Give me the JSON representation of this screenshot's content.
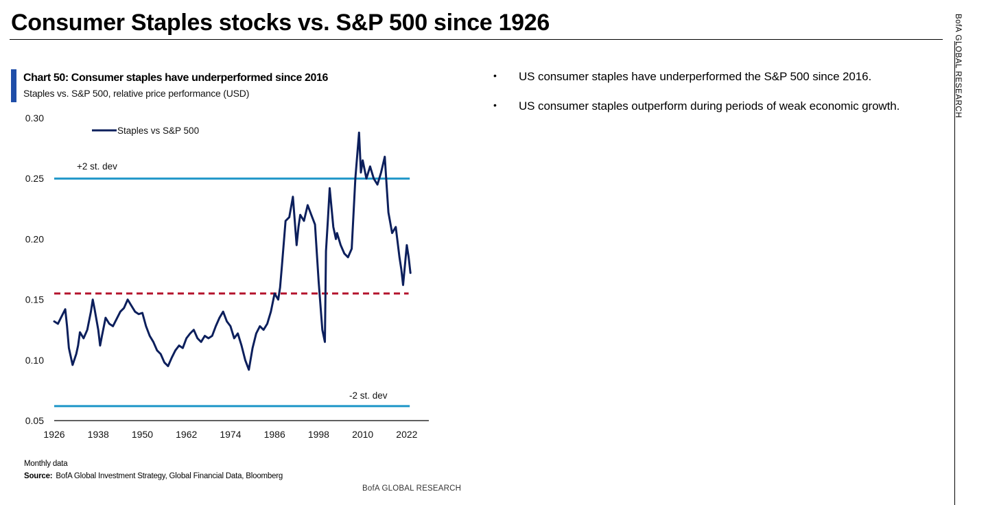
{
  "page": {
    "title": "Consumer Staples stocks vs. S&P 500 since 1926",
    "side_label": "BofA GLOBAL RESEARCH",
    "bullets": [
      "US consumer staples have underperformed the S&P 500 since 2016.",
      "US consumer staples outperform during periods of weak economic growth."
    ],
    "footnote": "Monthly data",
    "source_label": "Source:",
    "source_text": "BofA Global Investment Strategy, Global Financial Data, Bloomberg",
    "watermark": "BofA GLOBAL RESEARCH"
  },
  "colors": {
    "accent": "#1f4ea8",
    "series_line": "#0c1f5c",
    "band_line": "#1e96c8",
    "mean_line": "#b4142d"
  },
  "chart_data": {
    "type": "line",
    "title": "Chart 50: Consumer staples have underperformed since 2016",
    "subtitle": "Staples vs. S&P 500, relative price performance (USD)",
    "xlabel": "",
    "ylabel": "",
    "xlim": [
      1926,
      2028
    ],
    "ylim": [
      0.05,
      0.3
    ],
    "x_ticks": [
      1926,
      1938,
      1950,
      1962,
      1974,
      1986,
      1998,
      2010,
      2022
    ],
    "x_tick_labels": [
      "1926",
      "1938",
      "1950",
      "1962",
      "1974",
      "1986",
      "1998",
      "2010",
      "2022"
    ],
    "y_ticks": [
      0.05,
      0.1,
      0.15,
      0.2,
      0.25,
      0.3
    ],
    "y_tick_labels": [
      "0.05",
      "0.10",
      "0.15",
      "0.20",
      "0.25",
      "0.30"
    ],
    "legend": {
      "label": "Staples vs  S&P 500",
      "position": "top-left"
    },
    "series": [
      {
        "name": "Staples vs  S&P 500",
        "x": [
          1926,
          1927,
          1928,
          1929,
          1929.5,
          1930,
          1931,
          1932,
          1932.5,
          1933,
          1934,
          1935,
          1936,
          1936.5,
          1937,
          1938,
          1938.5,
          1939,
          1940,
          1941,
          1942,
          1943,
          1944,
          1945,
          1946,
          1947,
          1948,
          1949,
          1950,
          1951,
          1952,
          1953,
          1954,
          1955,
          1956,
          1957,
          1958,
          1959,
          1960,
          1961,
          1962,
          1963,
          1964,
          1965,
          1966,
          1967,
          1968,
          1969,
          1970,
          1971,
          1972,
          1973,
          1974,
          1975,
          1976,
          1977,
          1978,
          1979,
          1980,
          1981,
          1982,
          1983,
          1984,
          1985,
          1986,
          1987,
          1987.5,
          1988,
          1989,
          1990,
          1991,
          1992,
          1992.5,
          1993,
          1994,
          1995,
          1996,
          1997,
          1998,
          1999,
          1999.7,
          2000,
          2000.5,
          2001,
          2002,
          2002.7,
          2003,
          2004,
          2005,
          2006,
          2007,
          2008,
          2009,
          2009.5,
          2010,
          2011,
          2012,
          2013,
          2014,
          2015,
          2016,
          2016.5,
          2017,
          2018,
          2019,
          2020,
          2020.5,
          2021,
          2022,
          2022.5,
          2023
        ],
        "values": [
          0.132,
          0.13,
          0.136,
          0.142,
          0.128,
          0.11,
          0.096,
          0.105,
          0.112,
          0.123,
          0.118,
          0.125,
          0.14,
          0.15,
          0.142,
          0.125,
          0.112,
          0.12,
          0.135,
          0.13,
          0.128,
          0.134,
          0.14,
          0.143,
          0.15,
          0.145,
          0.14,
          0.138,
          0.139,
          0.128,
          0.12,
          0.115,
          0.108,
          0.105,
          0.098,
          0.095,
          0.102,
          0.108,
          0.112,
          0.11,
          0.118,
          0.122,
          0.125,
          0.118,
          0.115,
          0.12,
          0.118,
          0.12,
          0.128,
          0.135,
          0.14,
          0.132,
          0.128,
          0.118,
          0.122,
          0.112,
          0.1,
          0.092,
          0.11,
          0.122,
          0.128,
          0.125,
          0.13,
          0.14,
          0.155,
          0.15,
          0.16,
          0.178,
          0.215,
          0.218,
          0.235,
          0.195,
          0.21,
          0.22,
          0.215,
          0.228,
          0.22,
          0.212,
          0.165,
          0.125,
          0.115,
          0.19,
          0.215,
          0.242,
          0.21,
          0.2,
          0.205,
          0.195,
          0.188,
          0.185,
          0.192,
          0.25,
          0.288,
          0.255,
          0.265,
          0.25,
          0.26,
          0.25,
          0.245,
          0.255,
          0.268,
          0.245,
          0.222,
          0.205,
          0.21,
          0.185,
          0.175,
          0.162,
          0.195,
          0.185,
          0.172
        ]
      }
    ],
    "reference_lines": [
      {
        "name": "+2 st. dev",
        "value": 0.25
      },
      {
        "name": "-2 st. dev",
        "value": 0.062
      },
      {
        "name": "mean",
        "value": 0.155
      }
    ]
  }
}
